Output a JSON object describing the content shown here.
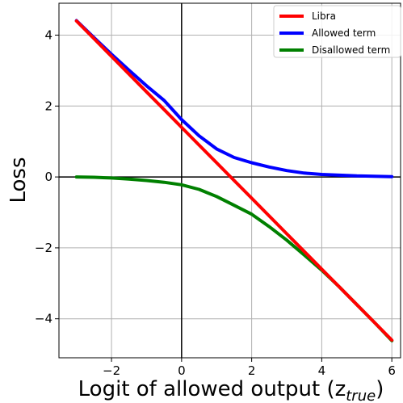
{
  "chart_data": {
    "type": "line",
    "title": "",
    "xlabel": "Logit of allowed output (z",
    "xlabel_subscript": "true",
    "xlabel_close": ")",
    "ylabel": "Loss",
    "xlim": [
      -3.5,
      6.25
    ],
    "ylim": [
      -5.1,
      4.9
    ],
    "xticks": [
      -2,
      0,
      2,
      4,
      6
    ],
    "yticks": [
      -4,
      -2,
      0,
      2,
      4
    ],
    "grid": true,
    "zero_lines": true,
    "legend_position": "top-right",
    "x": [
      -3,
      -2.5,
      -2,
      -1.5,
      -1,
      -0.5,
      0,
      0.5,
      1,
      1.5,
      2,
      2.5,
      3,
      3.5,
      4,
      4.5,
      5,
      5.5,
      6
    ],
    "series": [
      {
        "name": "Libra",
        "color": "#ff0000",
        "values": [
          4.4,
          3.9,
          3.4,
          2.9,
          2.4,
          1.9,
          1.4,
          0.9,
          0.4,
          -0.1,
          -0.6,
          -1.1,
          -1.6,
          -2.1,
          -2.6,
          -3.1,
          -3.6,
          -4.1,
          -4.6
        ]
      },
      {
        "name": "Allowed term",
        "color": "#0000ff",
        "values": [
          4.41,
          3.93,
          3.46,
          3.01,
          2.57,
          2.16,
          1.62,
          1.16,
          0.79,
          0.55,
          0.4,
          0.28,
          0.18,
          0.11,
          0.07,
          0.05,
          0.03,
          0.02,
          0.01
        ]
      },
      {
        "name": "Disallowed term",
        "color": "#008000",
        "values": [
          0.0,
          -0.01,
          -0.03,
          -0.06,
          -0.1,
          -0.15,
          -0.22,
          -0.35,
          -0.55,
          -0.8,
          -1.05,
          -1.4,
          -1.78,
          -2.2,
          -2.63,
          -3.1,
          -3.6,
          -4.1,
          -4.62
        ]
      }
    ]
  }
}
